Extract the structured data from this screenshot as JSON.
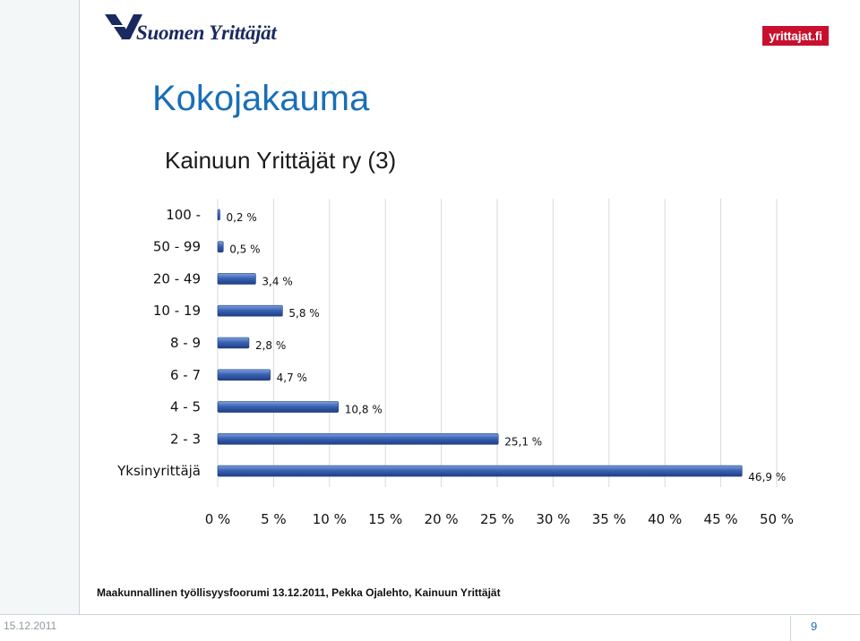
{
  "header": {
    "logo_text": "Suomen Yrittäjät",
    "badge_text": "yrittajat.fi"
  },
  "page": {
    "title": "Kokojakauma"
  },
  "footer": {
    "note": "Maakunnallinen työllisyysfoorumi 13.12.2011, Pekka Ojalehto, Kainuun Yrittäjät",
    "date": "15.12.2011",
    "page_number": "9"
  },
  "chart_data": {
    "type": "bar",
    "orientation": "horizontal",
    "title": "Kainuun Yrittäjät ry (3)",
    "categories": [
      "100 -",
      "50 - 99",
      "20 - 49",
      "10 - 19",
      "8 - 9",
      "6 - 7",
      "4 - 5",
      "2 - 3",
      "Yksinyrittäjä"
    ],
    "values": [
      0.2,
      0.5,
      3.4,
      5.8,
      2.8,
      4.7,
      10.8,
      25.1,
      46.9
    ],
    "value_labels": [
      "0,2 %",
      "0,5 %",
      "3,4 %",
      "5,8 %",
      "2,8 %",
      "4,7 %",
      "10,8 %",
      "25,1 %",
      "46,9 %"
    ],
    "x_ticks": [
      "0 %",
      "5 %",
      "10 %",
      "15 %",
      "20 %",
      "25 %",
      "30 %",
      "35 %",
      "40 %",
      "45 %",
      "50 %"
    ],
    "xlim": [
      0,
      50
    ],
    "grid": true,
    "bar_color": "#3b62b3",
    "xlabel": "",
    "ylabel": ""
  }
}
